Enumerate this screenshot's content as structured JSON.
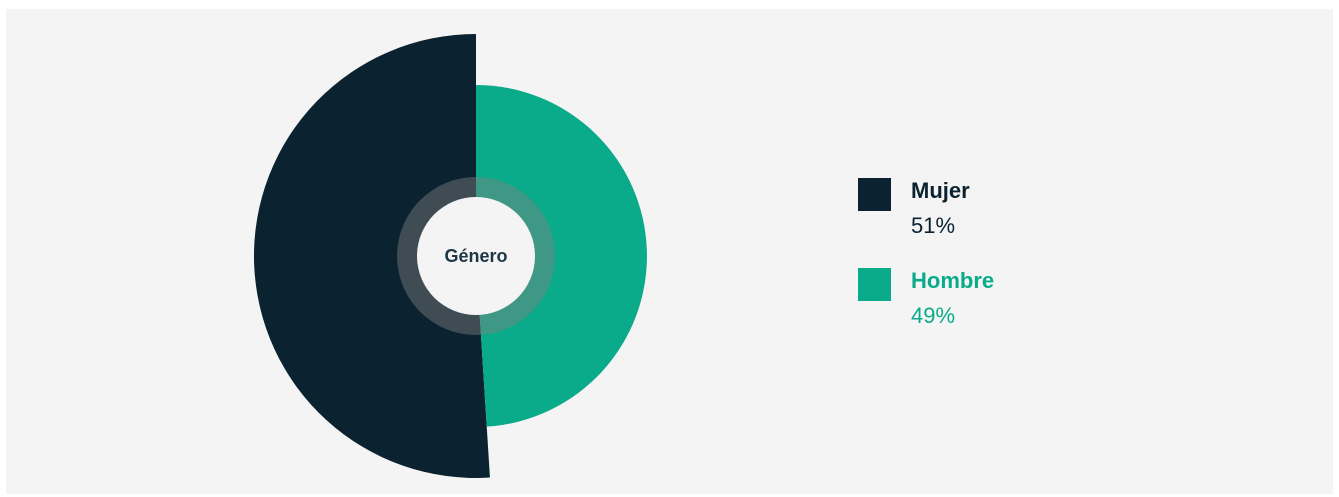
{
  "chart_data": {
    "type": "pie",
    "variant": "variable-radius pie with center hole",
    "center_label": "Género",
    "slices": [
      {
        "name": "Mujer",
        "label": "51%",
        "value": 51,
        "color": "#0b2230",
        "text_color": "#0b2230"
      },
      {
        "name": "Hombre",
        "label": "49%",
        "value": 49,
        "color": "#0aab8a",
        "text_color": "#0aab8a"
      }
    ],
    "legend_position": "right"
  }
}
